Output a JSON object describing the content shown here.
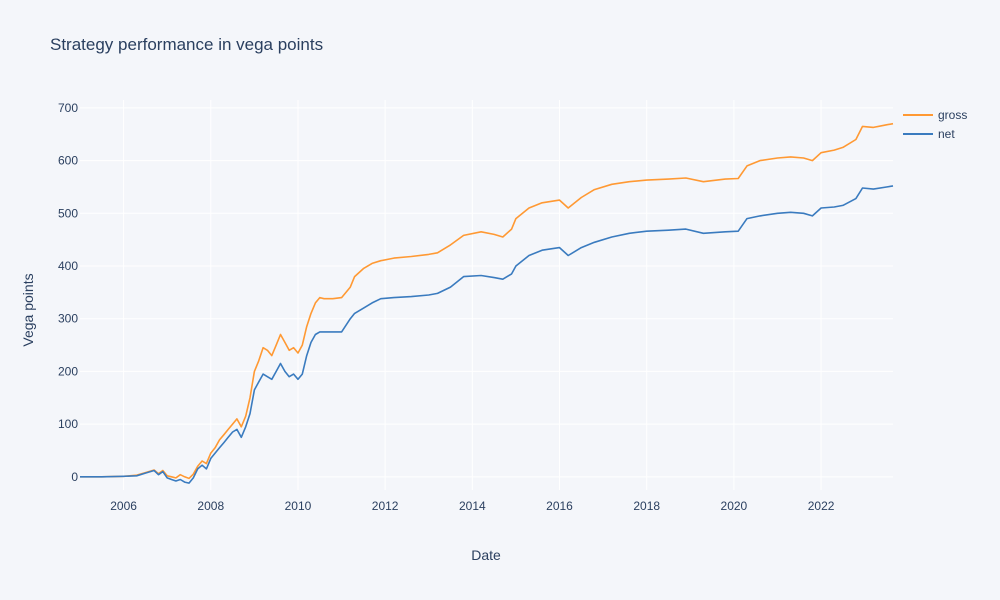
{
  "chart_data": {
    "type": "line",
    "title": "Strategy performance in vega points",
    "xlabel": "Date",
    "ylabel": "Vega points",
    "xlim": [
      2005.0,
      2023.65
    ],
    "ylim": [
      -25,
      715
    ],
    "x_ticks": [
      2006,
      2008,
      2010,
      2012,
      2014,
      2016,
      2018,
      2020,
      2022
    ],
    "y_ticks": [
      0,
      100,
      200,
      300,
      400,
      500,
      600,
      700
    ],
    "grid": true,
    "legend_position": "top-right",
    "colors": {
      "gross": "#ff9933",
      "net": "#3a7bbf",
      "background": "#f4f6fa",
      "grid": "#ffffff",
      "text": "#2a3f5f"
    },
    "series": [
      {
        "name": "gross",
        "x": [
          2005.0,
          2005.5,
          2006.0,
          2006.3,
          2006.5,
          2006.7,
          2006.8,
          2006.9,
          2007.0,
          2007.1,
          2007.2,
          2007.3,
          2007.4,
          2007.5,
          2007.6,
          2007.7,
          2007.8,
          2007.9,
          2008.0,
          2008.1,
          2008.2,
          2008.3,
          2008.4,
          2008.5,
          2008.6,
          2008.7,
          2008.8,
          2008.9,
          2009.0,
          2009.1,
          2009.2,
          2009.3,
          2009.4,
          2009.5,
          2009.6,
          2009.7,
          2009.8,
          2009.9,
          2010.0,
          2010.1,
          2010.2,
          2010.3,
          2010.4,
          2010.5,
          2010.6,
          2010.8,
          2011.0,
          2011.2,
          2011.3,
          2011.5,
          2011.7,
          2011.9,
          2012.2,
          2012.6,
          2013.0,
          2013.2,
          2013.5,
          2013.8,
          2014.2,
          2014.5,
          2014.7,
          2014.9,
          2015.0,
          2015.3,
          2015.6,
          2016.0,
          2016.2,
          2016.5,
          2016.8,
          2017.2,
          2017.6,
          2018.0,
          2018.5,
          2018.9,
          2019.3,
          2019.8,
          2020.1,
          2020.3,
          2020.6,
          2021.0,
          2021.3,
          2021.6,
          2021.8,
          2022.0,
          2022.3,
          2022.5,
          2022.8,
          2022.95,
          2023.2,
          2023.5,
          2023.65
        ],
        "values": [
          0,
          0,
          1,
          3,
          8,
          13,
          6,
          12,
          2,
          0,
          -2,
          4,
          0,
          -3,
          5,
          20,
          30,
          25,
          45,
          55,
          70,
          80,
          90,
          100,
          110,
          95,
          115,
          150,
          200,
          220,
          245,
          240,
          230,
          250,
          270,
          255,
          240,
          245,
          235,
          250,
          285,
          310,
          330,
          340,
          338,
          338,
          340,
          360,
          380,
          395,
          405,
          410,
          415,
          418,
          422,
          425,
          440,
          458,
          465,
          460,
          455,
          470,
          490,
          510,
          520,
          525,
          510,
          530,
          545,
          555,
          560,
          563,
          565,
          567,
          560,
          565,
          566,
          590,
          600,
          605,
          607,
          605,
          600,
          615,
          620,
          625,
          640,
          665,
          663,
          668,
          670
        ]
      },
      {
        "name": "net",
        "x": [
          2005.0,
          2005.5,
          2006.0,
          2006.3,
          2006.5,
          2006.7,
          2006.8,
          2006.9,
          2007.0,
          2007.1,
          2007.2,
          2007.3,
          2007.4,
          2007.5,
          2007.6,
          2007.7,
          2007.8,
          2007.9,
          2008.0,
          2008.1,
          2008.2,
          2008.3,
          2008.4,
          2008.5,
          2008.6,
          2008.7,
          2008.8,
          2008.9,
          2009.0,
          2009.1,
          2009.2,
          2009.3,
          2009.4,
          2009.5,
          2009.6,
          2009.7,
          2009.8,
          2009.9,
          2010.0,
          2010.1,
          2010.2,
          2010.3,
          2010.4,
          2010.5,
          2010.6,
          2010.8,
          2011.0,
          2011.2,
          2011.3,
          2011.5,
          2011.7,
          2011.9,
          2012.2,
          2012.6,
          2013.0,
          2013.2,
          2013.5,
          2013.8,
          2014.2,
          2014.5,
          2014.7,
          2014.9,
          2015.0,
          2015.3,
          2015.6,
          2016.0,
          2016.2,
          2016.5,
          2016.8,
          2017.2,
          2017.6,
          2018.0,
          2018.5,
          2018.9,
          2019.3,
          2019.8,
          2020.1,
          2020.3,
          2020.6,
          2021.0,
          2021.3,
          2021.6,
          2021.8,
          2022.0,
          2022.3,
          2022.5,
          2022.8,
          2022.95,
          2023.2,
          2023.5,
          2023.65
        ],
        "values": [
          0,
          0,
          1,
          2,
          7,
          12,
          4,
          10,
          -2,
          -5,
          -8,
          -5,
          -10,
          -12,
          -2,
          15,
          22,
          15,
          35,
          45,
          55,
          65,
          75,
          85,
          90,
          75,
          95,
          120,
          165,
          180,
          195,
          190,
          185,
          200,
          215,
          200,
          190,
          195,
          185,
          195,
          230,
          255,
          270,
          275,
          275,
          275,
          275,
          300,
          310,
          320,
          330,
          338,
          340,
          342,
          345,
          348,
          360,
          380,
          382,
          378,
          375,
          385,
          400,
          420,
          430,
          435,
          420,
          435,
          445,
          455,
          462,
          466,
          468,
          470,
          462,
          465,
          466,
          490,
          495,
          500,
          502,
          500,
          495,
          510,
          512,
          515,
          528,
          548,
          546,
          550,
          552
        ]
      }
    ]
  }
}
